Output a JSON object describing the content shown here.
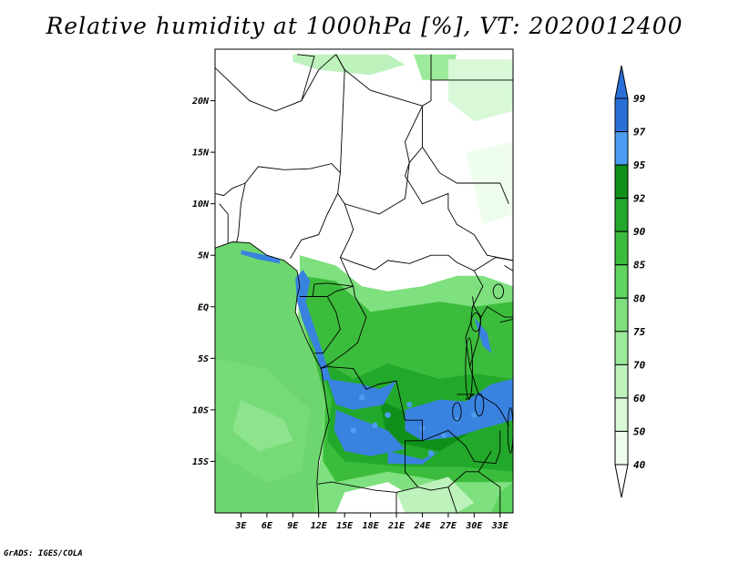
{
  "title": "Relative humidity at 1000hPa [%], VT: 2020012400",
  "credit": "GrADS: IGES/COLA",
  "map": {
    "lon_range": [
      0,
      34.5
    ],
    "lat_range": [
      -20,
      25
    ],
    "lat_ticks": [
      {
        "value": 20,
        "label": "20N"
      },
      {
        "value": 15,
        "label": "15N"
      },
      {
        "value": 10,
        "label": "10N"
      },
      {
        "value": 5,
        "label": "5N"
      },
      {
        "value": 0,
        "label": "EQ"
      },
      {
        "value": -5,
        "label": "5S"
      },
      {
        "value": -10,
        "label": "10S"
      },
      {
        "value": -15,
        "label": "15S"
      }
    ],
    "lon_ticks": [
      {
        "value": 3,
        "label": "3E"
      },
      {
        "value": 6,
        "label": "6E"
      },
      {
        "value": 9,
        "label": "9E"
      },
      {
        "value": 12,
        "label": "12E"
      },
      {
        "value": 15,
        "label": "15E"
      },
      {
        "value": 18,
        "label": "18E"
      },
      {
        "value": 21,
        "label": "21E"
      },
      {
        "value": 24,
        "label": "24E"
      },
      {
        "value": 27,
        "label": "27E"
      },
      {
        "value": 30,
        "label": "30E"
      },
      {
        "value": 33,
        "label": "33E"
      }
    ]
  },
  "colorbar": {
    "levels": [
      {
        "label": "99",
        "color": "#2a6fd8"
      },
      {
        "label": "97",
        "color": "#2a6fd8"
      },
      {
        "label": "95",
        "color": "#4a9df0"
      },
      {
        "label": "92",
        "color": "#10901a"
      },
      {
        "label": "90",
        "color": "#22a82a"
      },
      {
        "label": "85",
        "color": "#3cbc3c"
      },
      {
        "label": "80",
        "color": "#5fd45f"
      },
      {
        "label": "75",
        "color": "#7ee07e"
      },
      {
        "label": "70",
        "color": "#9cea9c"
      },
      {
        "label": "60",
        "color": "#bdf2bd"
      },
      {
        "label": "50",
        "color": "#d8f8d8"
      },
      {
        "label": "40",
        "color": "#effdef"
      }
    ]
  },
  "colors": {
    "land_dry": "#ffffff",
    "ocean": "#6ed66e",
    "wet_blue": "#3a82e0"
  }
}
